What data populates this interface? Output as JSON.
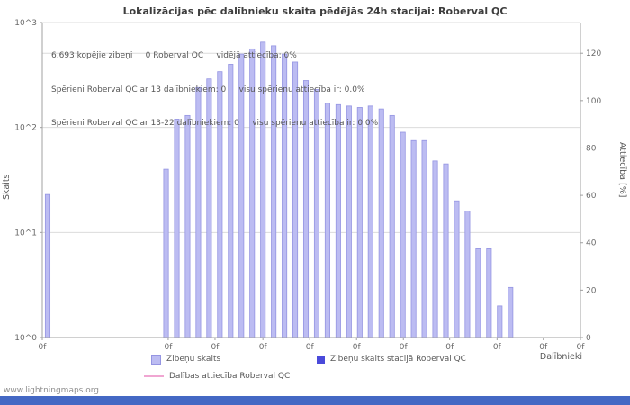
{
  "title": "Lokalizācijas pēc dalībnieku skaita pēdējās 24h stacijai: Roberval QC",
  "annotations": {
    "line1": "6,693 kopējie zibeņi     0 Roberval QC     vidējā attiecība: 0%",
    "line2": "Spērieni Roberval QC ar 13 dalībniekiem: 0     visu spērienu attiecība ir: 0.0%",
    "line3": "Spērieni Roberval QC ar 13-22 dalībniekiem: 0     visu spērienu attiecība ir: 0.0%"
  },
  "axes": {
    "left_label": "Skaits",
    "right_label": "Attiecība [%]",
    "x_label": "Dalībnieki",
    "left_ticks": [
      "10^0",
      "10^1",
      "10^2",
      "10^3"
    ],
    "x_ticks": [
      "0f",
      "0f",
      "0f",
      "0f",
      "0f",
      "0f",
      "0f",
      "0f",
      "0f",
      "0f",
      "0f"
    ]
  },
  "legend": [
    {
      "label": "Zibeņu skaits",
      "swatch": "light-purple-square"
    },
    {
      "label": "Zibeņu skaits stacijā Roberval QC",
      "swatch": "dark-blue-square"
    },
    {
      "label": "Dalības attiecība Roberval QC",
      "swatch": "pink-line"
    }
  ],
  "watermark": "www.lightningmaps.org",
  "colors": {
    "bar_fill": "#bcbcf2",
    "bar_stroke": "#9595e2",
    "station_fill": "#4a4ada",
    "ratio_line": "#f0a6d2",
    "grid": "#dcdcdc",
    "axis": "#a0a0a0",
    "footer": "#4468c4"
  },
  "chart_data": {
    "type": "bar",
    "title": "Lokalizācijas pēc dalībnieku skaita pēdējās 24h stacijai: Roberval QC",
    "xlabel": "Dalībnieki",
    "ylabel": "Skaits",
    "y2label": "Attiecība [%]",
    "yscale_left": "log10",
    "ylim_left": [
      1,
      1000
    ],
    "ylim_right": [
      0,
      133
    ],
    "right_ticks": [
      0,
      20,
      40,
      60,
      80,
      100,
      120
    ],
    "grid": "horizontal-light",
    "legend_position": "bottom",
    "total_flashes": 6693,
    "station_total_flashes": 0,
    "mean_ratio_percent": 0,
    "values": [
      23,
      0,
      0,
      0,
      0,
      0,
      0,
      0,
      0,
      0,
      0,
      40,
      120,
      130,
      240,
      290,
      340,
      400,
      500,
      560,
      650,
      600,
      500,
      420,
      280,
      230,
      170,
      165,
      160,
      155,
      160,
      150,
      130,
      90,
      75,
      75,
      48,
      45,
      20,
      16,
      7,
      7,
      2,
      3,
      0,
      0,
      0,
      0,
      0,
      0
    ],
    "series_notes": [
      {
        "name": "Zibeņu skaits",
        "role": "histogram of localizations per participant count"
      },
      {
        "name": "Zibeņu skaits stacijā Roberval QC",
        "values_constant": 0
      },
      {
        "name": "Dalības attiecība Roberval QC",
        "percent_constant": 0
      }
    ]
  }
}
